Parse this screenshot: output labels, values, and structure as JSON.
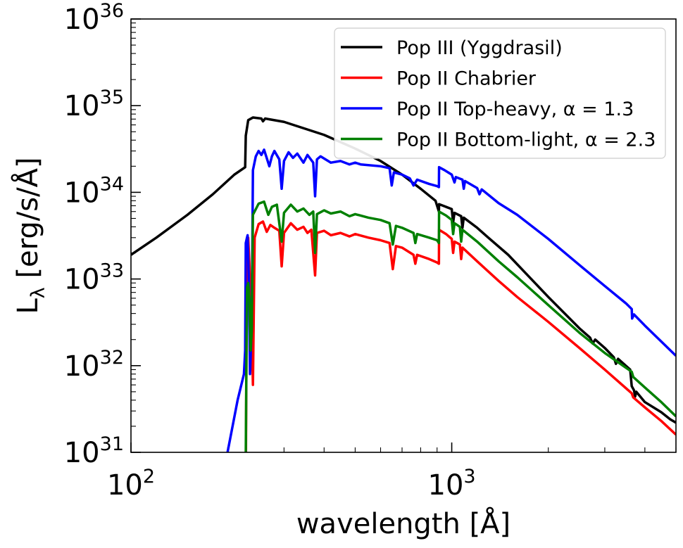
{
  "chart_data": {
    "type": "line",
    "title": "",
    "xlabel": "wavelength [Å]",
    "ylabel": "L_λ [erg/s/Å]",
    "xscale": "log",
    "yscale": "log",
    "xlim": [
      100,
      5000
    ],
    "ylim": [
      1e+31,
      1e+36
    ],
    "x_tick_labels": [
      {
        "value": 100,
        "base": "10",
        "exp": "2"
      },
      {
        "value": 1000,
        "base": "10",
        "exp": "3"
      }
    ],
    "y_tick_labels": [
      {
        "value": 1e+31,
        "base": "10",
        "exp": "31"
      },
      {
        "value": 1e+32,
        "base": "10",
        "exp": "32"
      },
      {
        "value": 1e+33,
        "base": "10",
        "exp": "33"
      },
      {
        "value": 1e+34,
        "base": "10",
        "exp": "34"
      },
      {
        "value": 1e+35,
        "base": "10",
        "exp": "35"
      },
      {
        "value": 1e+36,
        "base": "10",
        "exp": "36"
      }
    ],
    "legend_position": "top-right",
    "series": [
      {
        "name": "Pop III (Yggdrasil)",
        "color": "#000000",
        "points": [
          [
            100,
            1.9e+33
          ],
          [
            120,
            3e+33
          ],
          [
            150,
            5.5e+33
          ],
          [
            180,
            9.5e+33
          ],
          [
            210,
            1.6e+34
          ],
          [
            227,
            1.95e+34
          ],
          [
            228,
            4.5e+34
          ],
          [
            232,
            6.8e+34
          ],
          [
            240,
            7.3e+34
          ],
          [
            255,
            7.1e+34
          ],
          [
            258,
            6.6e+34
          ],
          [
            262,
            7.1e+34
          ],
          [
            300,
            6.5e+34
          ],
          [
            400,
            4.6e+34
          ],
          [
            500,
            3.2e+34
          ],
          [
            600,
            2.3e+34
          ],
          [
            700,
            1.6e+34
          ],
          [
            800,
            1.1e+34
          ],
          [
            890,
            8e+33
          ],
          [
            912,
            6e+33
          ],
          [
            913,
            7.3e+33
          ],
          [
            950,
            6.9e+33
          ],
          [
            1000,
            6.4e+33
          ],
          [
            1010,
            4.5e+33
          ],
          [
            1020,
            5.8e+33
          ],
          [
            1070,
            5.3e+33
          ],
          [
            1080,
            3.9e+33
          ],
          [
            1090,
            5.1e+33
          ],
          [
            1200,
            3.9e+33
          ],
          [
            1300,
            3e+33
          ],
          [
            1500,
            1.9e+33
          ],
          [
            2000,
            6.2e+32
          ],
          [
            2500,
            2.7e+32
          ],
          [
            2700,
            2.1e+32
          ],
          [
            2750,
            1.8e+32
          ],
          [
            2800,
            2e+32
          ],
          [
            3000,
            1.6e+32
          ],
          [
            3200,
            1.25e+32
          ],
          [
            3250,
            1.05e+32
          ],
          [
            3300,
            1.2e+32
          ],
          [
            3600,
            9e+31
          ],
          [
            3640,
            5.8e+31
          ],
          [
            3700,
            5.2e+31
          ],
          [
            3730,
            4.4e+31
          ],
          [
            3760,
            5e+31
          ],
          [
            4000,
            3.8e+31
          ],
          [
            4500,
            2.9e+31
          ],
          [
            4800,
            2.4e+31
          ],
          [
            5000,
            2.2e+31
          ]
        ]
      },
      {
        "name": "Pop II Chabrier",
        "color": "#ff0000",
        "points": [
          [
            228,
            4e+30
          ],
          [
            229,
            1.2e+32
          ],
          [
            230,
            9e+32
          ],
          [
            232,
            3e+33
          ],
          [
            234,
            1.5e+33
          ],
          [
            238,
            2.6e+32
          ],
          [
            240,
            6e+31
          ],
          [
            243,
            3e+33
          ],
          [
            250,
            4.3e+33
          ],
          [
            258,
            4.6e+33
          ],
          [
            265,
            3.5e+33
          ],
          [
            272,
            4.2e+33
          ],
          [
            280,
            3.9e+33
          ],
          [
            290,
            3.6e+33
          ],
          [
            295,
            1.4e+33
          ],
          [
            300,
            3.4e+33
          ],
          [
            315,
            4.4e+33
          ],
          [
            330,
            3.7e+33
          ],
          [
            345,
            4e+33
          ],
          [
            355,
            3.4e+33
          ],
          [
            365,
            3.7e+33
          ],
          [
            375,
            1.1e+33
          ],
          [
            380,
            3.4e+33
          ],
          [
            400,
            3.6e+33
          ],
          [
            420,
            3.2e+33
          ],
          [
            450,
            3.4e+33
          ],
          [
            480,
            3.1e+33
          ],
          [
            500,
            3.3e+33
          ],
          [
            550,
            3e+33
          ],
          [
            600,
            2.8e+33
          ],
          [
            640,
            2.6e+33
          ],
          [
            655,
            1.3e+33
          ],
          [
            670,
            2.4e+33
          ],
          [
            700,
            2.3e+33
          ],
          [
            760,
            1.9e+33
          ],
          [
            770,
            1.5e+33
          ],
          [
            780,
            1.9e+33
          ],
          [
            850,
            1.7e+33
          ],
          [
            900,
            1.55e+33
          ],
          [
            912,
            1.5e+33
          ],
          [
            913,
            3.7e+33
          ],
          [
            960,
            3.3e+33
          ],
          [
            1000,
            2.9e+33
          ],
          [
            1010,
            2e+33
          ],
          [
            1020,
            2.7e+33
          ],
          [
            1060,
            2.5e+33
          ],
          [
            1070,
            1.7e+33
          ],
          [
            1080,
            2.3e+33
          ],
          [
            1200,
            1.6e+33
          ],
          [
            1400,
            9.5e+32
          ],
          [
            1600,
            6.2e+32
          ],
          [
            2000,
            3.2e+32
          ],
          [
            2500,
            1.6e+32
          ],
          [
            3000,
            9e+31
          ],
          [
            3640,
            4.8e+31
          ],
          [
            3680,
            4.3e+31
          ],
          [
            4000,
            3.3e+31
          ],
          [
            4500,
            2.3e+31
          ],
          [
            5000,
            1.6e+31
          ]
        ]
      },
      {
        "name": "Pop II Top-heavy, α = 1.3",
        "color": "#0000ff",
        "points": [
          [
            180,
            1e+30
          ],
          [
            200,
            1e+31
          ],
          [
            215,
            4e+31
          ],
          [
            225,
            8e+31
          ],
          [
            227,
            1.5e+32
          ],
          [
            228,
            2.6e+33
          ],
          [
            230,
            3e+33
          ],
          [
            231,
            3.2e+33
          ],
          [
            233,
            1e+33
          ],
          [
            235,
            8e+31
          ],
          [
            238,
            3e+32
          ],
          [
            240,
            1.8e+34
          ],
          [
            245,
            2.6e+34
          ],
          [
            250,
            3e+34
          ],
          [
            255,
            2.7e+34
          ],
          [
            260,
            3.1e+34
          ],
          [
            270,
            2e+34
          ],
          [
            275,
            2.6e+34
          ],
          [
            280,
            3e+34
          ],
          [
            290,
            2.4e+34
          ],
          [
            295,
            1.1e+34
          ],
          [
            300,
            2.3e+34
          ],
          [
            310,
            2.9e+34
          ],
          [
            320,
            2.5e+34
          ],
          [
            330,
            2.8e+34
          ],
          [
            345,
            2.2e+34
          ],
          [
            355,
            2.7e+34
          ],
          [
            370,
            2.2e+34
          ],
          [
            375,
            9e+33
          ],
          [
            380,
            2.4e+34
          ],
          [
            390,
            2.6e+34
          ],
          [
            420,
            2.2e+34
          ],
          [
            450,
            2.3e+34
          ],
          [
            480,
            2.1e+34
          ],
          [
            500,
            2.2e+34
          ],
          [
            520,
            2.1e+34
          ],
          [
            600,
            2e+34
          ],
          [
            640,
            1.9e+34
          ],
          [
            650,
            1.2e+34
          ],
          [
            660,
            1.7e+34
          ],
          [
            700,
            1.6e+34
          ],
          [
            740,
            1.45e+34
          ],
          [
            760,
            1.2e+34
          ],
          [
            780,
            1.4e+34
          ],
          [
            850,
            1.25e+34
          ],
          [
            900,
            1.18e+34
          ],
          [
            912,
            1.15e+34
          ],
          [
            913,
            1.95e+34
          ],
          [
            950,
            1.8e+34
          ],
          [
            1000,
            1.6e+34
          ],
          [
            1020,
            1.3e+34
          ],
          [
            1030,
            1.5e+34
          ],
          [
            1080,
            1.4e+34
          ],
          [
            1090,
            1.1e+34
          ],
          [
            1100,
            1.35e+34
          ],
          [
            1200,
            1.12e+34
          ],
          [
            1220,
            9.5e+33
          ],
          [
            1240,
            1.08e+34
          ],
          [
            1400,
            7.5e+33
          ],
          [
            1600,
            5.5e+33
          ],
          [
            2000,
            2.9e+33
          ],
          [
            2500,
            1.45e+33
          ],
          [
            3000,
            8.3e+32
          ],
          [
            3500,
            5.2e+32
          ],
          [
            3640,
            4.5e+32
          ],
          [
            3650,
            3.5e+32
          ],
          [
            3700,
            3.9e+32
          ],
          [
            4000,
            2.9e+32
          ],
          [
            4500,
            1.9e+32
          ],
          [
            5000,
            1.3e+32
          ]
        ]
      },
      {
        "name": "Pop II Bottom-light, α = 2.3",
        "color": "#008000",
        "points": [
          [
            228,
            1e+31
          ],
          [
            229,
            1e+32
          ],
          [
            230,
            8e+32
          ],
          [
            232,
            9e+32
          ],
          [
            234,
            6e+32
          ],
          [
            236,
            1.5e+32
          ],
          [
            238,
            2.5e+32
          ],
          [
            240,
            5.5e+33
          ],
          [
            250,
            7.4e+33
          ],
          [
            260,
            7.8e+33
          ],
          [
            268,
            5.5e+33
          ],
          [
            275,
            6.8e+33
          ],
          [
            285,
            7.2e+33
          ],
          [
            295,
            2.7e+33
          ],
          [
            300,
            5.8e+33
          ],
          [
            315,
            7.2e+33
          ],
          [
            330,
            6e+33
          ],
          [
            345,
            6.5e+33
          ],
          [
            360,
            5.5e+33
          ],
          [
            370,
            6e+33
          ],
          [
            375,
            2e+33
          ],
          [
            380,
            5.6e+33
          ],
          [
            400,
            6.2e+33
          ],
          [
            420,
            5.7e+33
          ],
          [
            450,
            6e+33
          ],
          [
            480,
            5.3e+33
          ],
          [
            500,
            5.6e+33
          ],
          [
            550,
            5.1e+33
          ],
          [
            600,
            4.8e+33
          ],
          [
            640,
            4.4e+33
          ],
          [
            655,
            2.5e+33
          ],
          [
            670,
            4.1e+33
          ],
          [
            700,
            3.9e+33
          ],
          [
            760,
            3.4e+33
          ],
          [
            770,
            2.6e+33
          ],
          [
            780,
            3.3e+33
          ],
          [
            850,
            3e+33
          ],
          [
            900,
            2.8e+33
          ],
          [
            912,
            2.6e+33
          ],
          [
            913,
            6e+33
          ],
          [
            960,
            5.4e+33
          ],
          [
            1000,
            4.8e+33
          ],
          [
            1010,
            3.3e+33
          ],
          [
            1020,
            4.4e+33
          ],
          [
            1060,
            4e+33
          ],
          [
            1070,
            2.7e+33
          ],
          [
            1080,
            3.7e+33
          ],
          [
            1200,
            2.7e+33
          ],
          [
            1400,
            1.6e+33
          ],
          [
            1600,
            1.05e+33
          ],
          [
            2000,
            5e+32
          ],
          [
            2500,
            2.4e+32
          ],
          [
            3000,
            1.4e+32
          ],
          [
            3640,
            8.5e+31
          ],
          [
            3680,
            7.4e+31
          ],
          [
            4000,
            5.6e+31
          ],
          [
            4500,
            3.8e+31
          ],
          [
            5000,
            2.6e+31
          ]
        ]
      }
    ]
  }
}
